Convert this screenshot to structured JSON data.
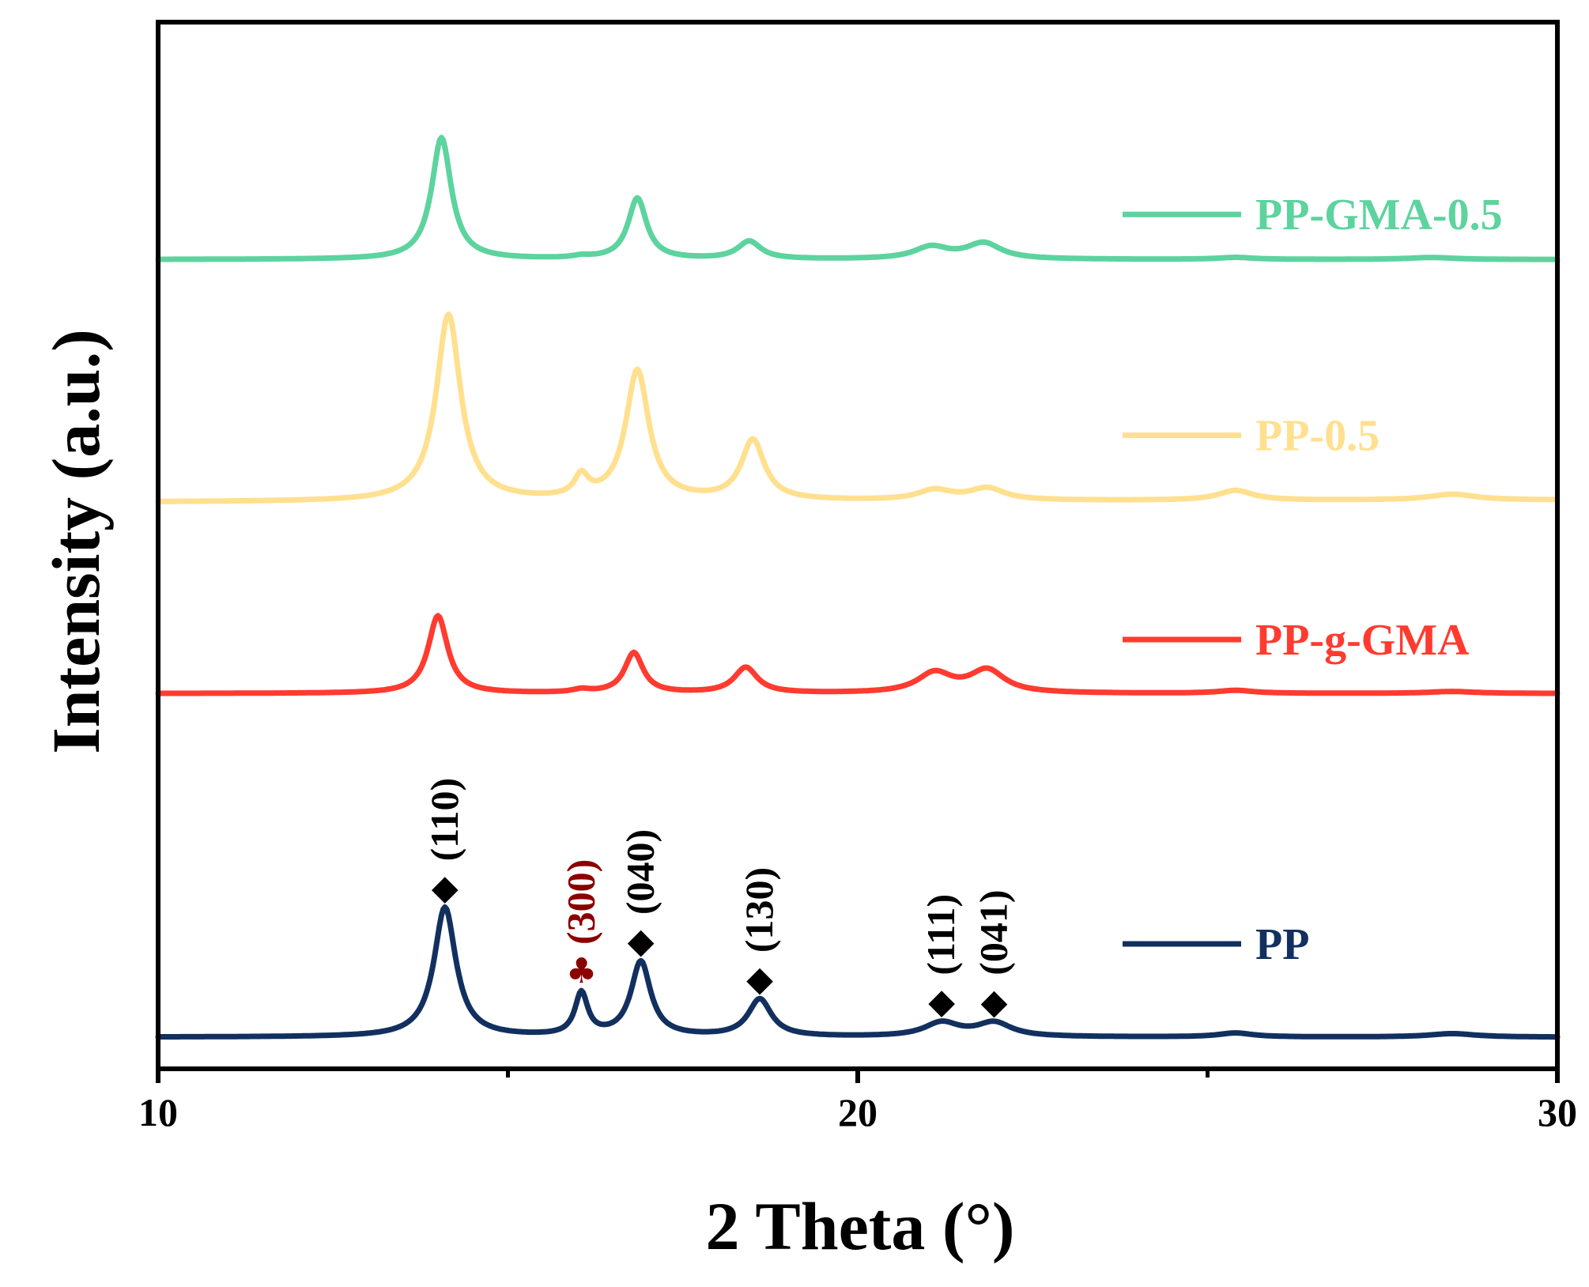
{
  "chart_data": {
    "type": "line",
    "title": "",
    "xlabel": "2 Theta (°)",
    "ylabel": "Intensity (a.u.)",
    "xlim": [
      10,
      30
    ],
    "ylim": [
      0,
      100
    ],
    "x_ticks": [
      10,
      20,
      30
    ],
    "x_minor_ticks": [
      15,
      25
    ],
    "y_ticks_shown": false,
    "legend_position": "right",
    "series": [
      {
        "name": "PP",
        "color": "#12305f",
        "baseline": 0.0,
        "tail": 0.0,
        "peaks": [
          [
            14.1,
            13.2,
            0.19
          ],
          [
            16.05,
            4.3,
            0.11
          ],
          [
            16.9,
            7.6,
            0.17
          ],
          [
            18.6,
            3.8,
            0.2
          ],
          [
            21.2,
            1.4,
            0.3
          ],
          [
            21.95,
            1.4,
            0.3
          ],
          [
            25.4,
            0.4,
            0.3
          ],
          [
            28.5,
            0.35,
            0.4
          ]
        ],
        "points": [
          [
            10,
            0.3
          ],
          [
            13.0,
            0.5
          ],
          [
            13.6,
            1.7
          ],
          [
            14.0,
            10.5
          ],
          [
            14.1,
            13.2
          ],
          [
            14.35,
            6.0
          ],
          [
            14.7,
            1.6
          ],
          [
            15.5,
            0.7
          ],
          [
            16.05,
            4.3
          ],
          [
            16.4,
            1.3
          ],
          [
            16.9,
            7.6
          ],
          [
            17.3,
            1.6
          ],
          [
            17.9,
            1.0
          ],
          [
            18.6,
            3.8
          ],
          [
            19.1,
            1.0
          ],
          [
            20.6,
            0.9
          ],
          [
            21.2,
            1.4
          ],
          [
            21.6,
            1.0
          ],
          [
            21.95,
            1.4
          ],
          [
            22.6,
            0.5
          ],
          [
            25.4,
            0.4
          ],
          [
            28.5,
            0.35
          ],
          [
            30,
            0.0
          ]
        ]
      },
      {
        "name": "PP-g-GMA",
        "color": "#ff3b30",
        "baseline": 35.0,
        "tail": 35.0,
        "peaks": [
          [
            14.0,
            7.9,
            0.17
          ],
          [
            16.05,
            0.3,
            0.15
          ],
          [
            16.8,
            4.1,
            0.16
          ],
          [
            18.4,
            2.6,
            0.2
          ],
          [
            21.1,
            2.0,
            0.3
          ],
          [
            21.85,
            2.3,
            0.3
          ],
          [
            25.4,
            0.3,
            0.3
          ],
          [
            28.5,
            0.2,
            0.4
          ]
        ],
        "points": [
          [
            10,
            35.0
          ],
          [
            13.0,
            35.3
          ],
          [
            13.7,
            36.5
          ],
          [
            14.0,
            42.9
          ],
          [
            14.35,
            37.5
          ],
          [
            14.8,
            35.5
          ],
          [
            16.8,
            39.1
          ],
          [
            17.2,
            35.8
          ],
          [
            18.4,
            37.6
          ],
          [
            18.9,
            35.5
          ],
          [
            20.5,
            35.4
          ],
          [
            21.1,
            37.0
          ],
          [
            21.5,
            36.4
          ],
          [
            21.85,
            37.3
          ],
          [
            22.5,
            35.8
          ],
          [
            30,
            35.0
          ]
        ]
      },
      {
        "name": "PP-0.5",
        "color": "#ffe08f",
        "baseline": 54.5,
        "tail": 54.7,
        "peaks": [
          [
            14.15,
            19.0,
            0.21
          ],
          [
            16.05,
            2.1,
            0.12
          ],
          [
            16.85,
            13.2,
            0.2
          ],
          [
            18.5,
            6.1,
            0.2
          ],
          [
            21.1,
            1.0,
            0.3
          ],
          [
            21.85,
            1.2,
            0.3
          ],
          [
            25.4,
            1.0,
            0.3
          ],
          [
            28.5,
            0.6,
            0.4
          ]
        ],
        "points": [
          [
            10,
            54.5
          ],
          [
            13.0,
            55.3
          ],
          [
            13.6,
            56.8
          ],
          [
            14.15,
            73.5
          ],
          [
            14.5,
            60.0
          ],
          [
            14.9,
            56.2
          ],
          [
            15.7,
            55.8
          ],
          [
            16.05,
            57.6
          ],
          [
            16.4,
            56.4
          ],
          [
            16.85,
            68.6
          ],
          [
            17.3,
            56.8
          ],
          [
            18.0,
            55.8
          ],
          [
            18.5,
            61.2
          ],
          [
            18.9,
            55.9
          ],
          [
            20.5,
            55.6
          ],
          [
            21.1,
            56.2
          ],
          [
            21.85,
            56.4
          ],
          [
            22.6,
            55.2
          ],
          [
            25.4,
            56.0
          ],
          [
            26.2,
            55.1
          ],
          [
            28.5,
            55.3
          ],
          [
            30,
            54.7
          ]
        ]
      },
      {
        "name": "PP-GMA-0.5",
        "color": "#5dd39e",
        "baseline": 79.2,
        "tail": 79.2,
        "peaks": [
          [
            14.05,
            12.4,
            0.17
          ],
          [
            16.05,
            0.2,
            0.15
          ],
          [
            16.85,
            6.2,
            0.16
          ],
          [
            18.45,
            1.8,
            0.2
          ],
          [
            21.05,
            1.2,
            0.3
          ],
          [
            21.8,
            1.6,
            0.3
          ],
          [
            25.4,
            0.2,
            0.3
          ],
          [
            28.2,
            0.2,
            0.4
          ]
        ],
        "points": [
          [
            10,
            79.2
          ],
          [
            13.0,
            79.6
          ],
          [
            13.7,
            81.0
          ],
          [
            14.05,
            91.6
          ],
          [
            14.4,
            82.0
          ],
          [
            14.8,
            80.2
          ],
          [
            16.5,
            80.3
          ],
          [
            16.85,
            85.4
          ],
          [
            17.2,
            80.4
          ],
          [
            18.45,
            81.6
          ],
          [
            18.9,
            80.0
          ],
          [
            20.5,
            79.8
          ],
          [
            21.05,
            80.9
          ],
          [
            21.45,
            80.6
          ],
          [
            21.8,
            81.2
          ],
          [
            22.5,
            79.6
          ],
          [
            30,
            79.2
          ]
        ]
      }
    ],
    "peak_annotations": [
      {
        "label": "(110)",
        "x": 14.1,
        "marker": "◆",
        "color": "#000000"
      },
      {
        "label": "(300)",
        "x": 16.05,
        "marker": "♣",
        "color": "#8b0000"
      },
      {
        "label": "(040)",
        "x": 16.9,
        "marker": "◆",
        "color": "#000000"
      },
      {
        "label": "(130)",
        "x": 18.6,
        "marker": "◆",
        "color": "#000000"
      },
      {
        "label": "(111)",
        "x": 21.2,
        "marker": "◆",
        "color": "#000000"
      },
      {
        "label": "(041)",
        "x": 21.95,
        "marker": "◆",
        "color": "#000000"
      }
    ]
  }
}
